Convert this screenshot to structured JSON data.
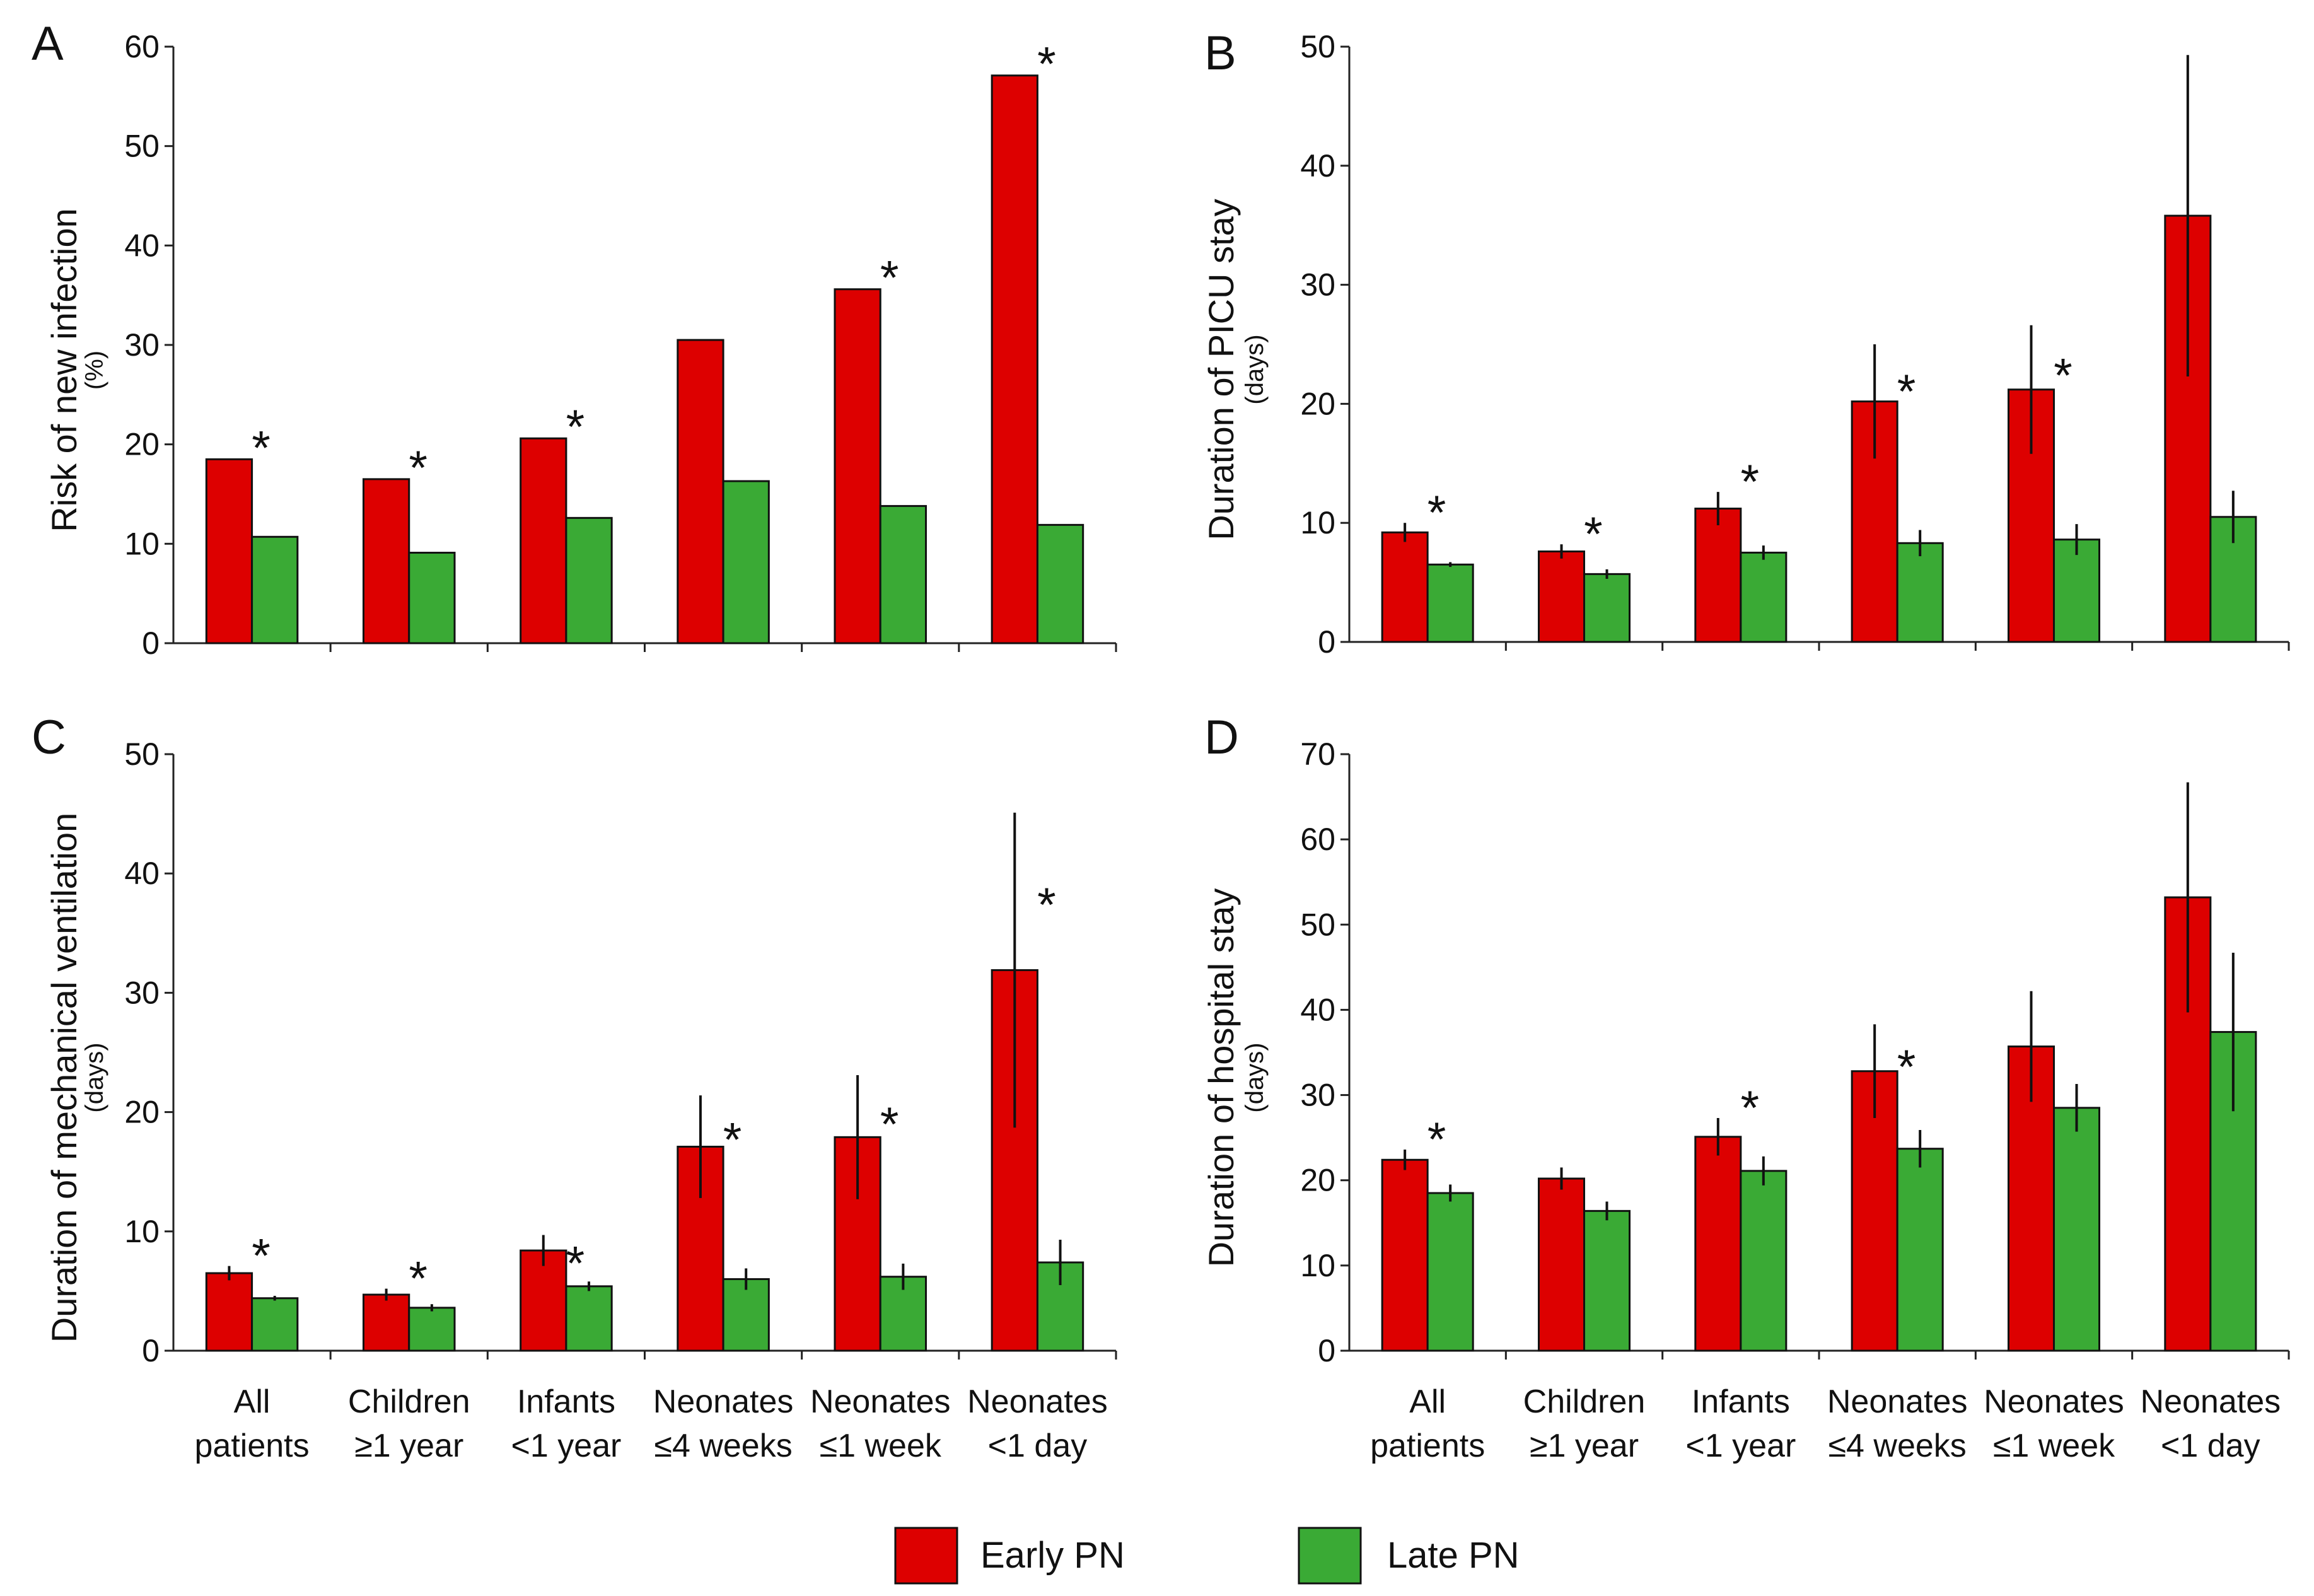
{
  "categories": [
    [
      "All",
      "patients"
    ],
    [
      "Children",
      "≥1 year"
    ],
    [
      "Infants",
      "<1 year"
    ],
    [
      "Neonates",
      "≤4 weeks"
    ],
    [
      "Neonates",
      "≤1 week"
    ],
    [
      "Neonates",
      "<1 day"
    ]
  ],
  "legend": [
    {
      "label": "Early PN",
      "color": "#dd0000"
    },
    {
      "label": "Late PN",
      "color": "#3aaa35"
    }
  ],
  "significance_marker": "*",
  "chart_data": [
    {
      "type": "bar",
      "panel": "A",
      "ylabel": "Risk of new infection",
      "yunit": "(%)",
      "ylim": [
        0,
        60
      ],
      "yticks": [
        0,
        10,
        20,
        30,
        40,
        50,
        60
      ],
      "categories": [
        "All patients",
        "Children ≥1 year",
        "Infants <1 year",
        "Neonates ≤4 weeks",
        "Neonates ≤1 week",
        "Neonates <1 day"
      ],
      "series": [
        {
          "name": "Early PN",
          "values": [
            18.5,
            16.5,
            20.6,
            30.5,
            35.6,
            57.1
          ]
        },
        {
          "name": "Late PN",
          "values": [
            10.7,
            9.1,
            12.6,
            16.3,
            13.8,
            11.9
          ]
        }
      ],
      "significant": [
        true,
        true,
        true,
        false,
        true,
        true
      ]
    },
    {
      "type": "bar",
      "panel": "B",
      "ylabel": "Duration of PICU stay",
      "yunit": "(days)",
      "ylim": [
        0,
        50
      ],
      "yticks": [
        0,
        10,
        20,
        30,
        40,
        50
      ],
      "categories": [
        "All patients",
        "Children ≥1 year",
        "Infants <1 year",
        "Neonates ≤4 weeks",
        "Neonates ≤1 week",
        "Neonates <1 day"
      ],
      "series": [
        {
          "name": "Early PN",
          "values": [
            9.2,
            7.6,
            11.2,
            20.2,
            21.2,
            35.8
          ],
          "err": [
            0.8,
            0.6,
            1.4,
            4.8,
            5.4,
            13.5
          ]
        },
        {
          "name": "Late PN",
          "values": [
            6.5,
            5.7,
            7.5,
            8.3,
            8.6,
            10.5
          ],
          "err": [
            0.2,
            0.4,
            0.6,
            1.1,
            1.3,
            2.2
          ]
        }
      ],
      "significant": [
        true,
        true,
        true,
        true,
        true,
        false
      ]
    },
    {
      "type": "bar",
      "panel": "C",
      "ylabel": "Duration of mechanical ventilation",
      "yunit": "(days)",
      "ylim": [
        0,
        50
      ],
      "yticks": [
        0,
        10,
        20,
        30,
        40,
        50
      ],
      "categories": [
        "All patients",
        "Children ≥1 year",
        "Infants <1 year",
        "Neonates ≤4 weeks",
        "Neonates ≤1 week",
        "Neonates <1 day"
      ],
      "series": [
        {
          "name": "Early PN",
          "values": [
            6.5,
            4.7,
            8.4,
            17.1,
            17.9,
            31.9
          ],
          "err": [
            0.6,
            0.5,
            1.3,
            4.3,
            5.2,
            13.2
          ]
        },
        {
          "name": "Late PN",
          "values": [
            4.4,
            3.6,
            5.4,
            6.0,
            6.2,
            7.4
          ],
          "err": [
            0.2,
            0.3,
            0.4,
            0.9,
            1.1,
            1.9
          ]
        }
      ],
      "significant": [
        true,
        true,
        true,
        true,
        true,
        true
      ]
    },
    {
      "type": "bar",
      "panel": "D",
      "ylabel": "Duration of hospital stay",
      "yunit": "(days)",
      "ylim": [
        0,
        70
      ],
      "yticks": [
        0,
        10,
        20,
        30,
        40,
        50,
        60,
        70
      ],
      "categories": [
        "All patients",
        "Children ≥1 year",
        "Infants <1 year",
        "Neonates ≤4 weeks",
        "Neonates ≤1 week",
        "Neonates <1 day"
      ],
      "series": [
        {
          "name": "Early PN",
          "values": [
            22.4,
            20.2,
            25.1,
            32.8,
            35.7,
            53.2
          ],
          "err": [
            1.2,
            1.3,
            2.2,
            5.5,
            6.5,
            13.5
          ]
        },
        {
          "name": "Late PN",
          "values": [
            18.5,
            16.4,
            21.1,
            23.7,
            28.5,
            37.4
          ],
          "err": [
            1.0,
            1.1,
            1.7,
            2.2,
            2.8,
            9.3
          ]
        }
      ],
      "significant": [
        true,
        false,
        true,
        true,
        false,
        false
      ]
    }
  ]
}
